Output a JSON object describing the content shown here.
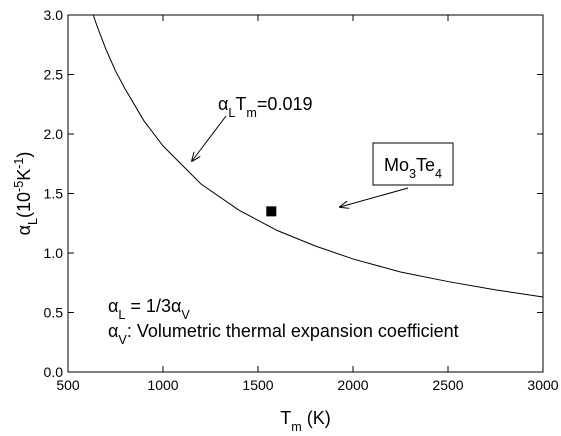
{
  "chart_data": {
    "type": "line",
    "x_label": [
      {
        "text": "T"
      },
      {
        "text": "m",
        "sub": true
      },
      {
        "text": " (K)"
      }
    ],
    "y_label": [
      {
        "text": "α"
      },
      {
        "text": "L",
        "sub": true
      },
      {
        "text": "(10"
      },
      {
        "text": "-5",
        "sup": true
      },
      {
        "text": "K"
      },
      {
        "text": "-1",
        "sup": true
      },
      {
        "text": ")"
      }
    ],
    "x": [
      633,
      650,
      700,
      750,
      800,
      900,
      1000,
      1200,
      1400,
      1600,
      1800,
      2000,
      2250,
      2500,
      2750,
      3000
    ],
    "series": [
      {
        "name": "curve",
        "color": "#000000",
        "values": [
          3.0,
          2.92,
          2.71,
          2.53,
          2.38,
          2.11,
          1.9,
          1.58,
          1.36,
          1.19,
          1.06,
          0.95,
          0.84,
          0.76,
          0.69,
          0.63
        ]
      }
    ],
    "points": [
      {
        "label": [
          {
            "text": "Mo"
          },
          {
            "text": "3",
            "sub": true
          },
          {
            "text": "Te"
          },
          {
            "text": "4",
            "sub": true
          }
        ],
        "x": 1570,
        "y": 1.35,
        "color": "#000000"
      }
    ],
    "annotations": [
      [
        {
          "text": "α"
        },
        {
          "text": "L",
          "sub": true
        },
        {
          "text": "T"
        },
        {
          "text": "m",
          "sub": true
        },
        {
          "text": "=0.019"
        }
      ],
      [
        {
          "text": "α"
        },
        {
          "text": "L",
          "sub": true
        },
        {
          "text": " = 1/3α"
        },
        {
          "text": "V",
          "sub": true
        }
      ],
      [
        {
          "text": "α"
        },
        {
          "text": "V",
          "sub": true
        },
        {
          "text": ": Volumetric thermal expansion coefficient"
        }
      ]
    ],
    "xlim": [
      500,
      3000
    ],
    "xticks": [
      500,
      1000,
      1500,
      2000,
      2500,
      3000
    ],
    "ylim": [
      0,
      3.0
    ],
    "yticks": [
      {
        "value": 0,
        "label": "0.0"
      },
      0.5,
      {
        "value": 1,
        "label": "1.0"
      },
      1.5,
      {
        "value": 2,
        "label": "2.0"
      },
      2.5,
      {
        "value": 3,
        "label": "3.0"
      }
    ],
    "grid": false
  }
}
